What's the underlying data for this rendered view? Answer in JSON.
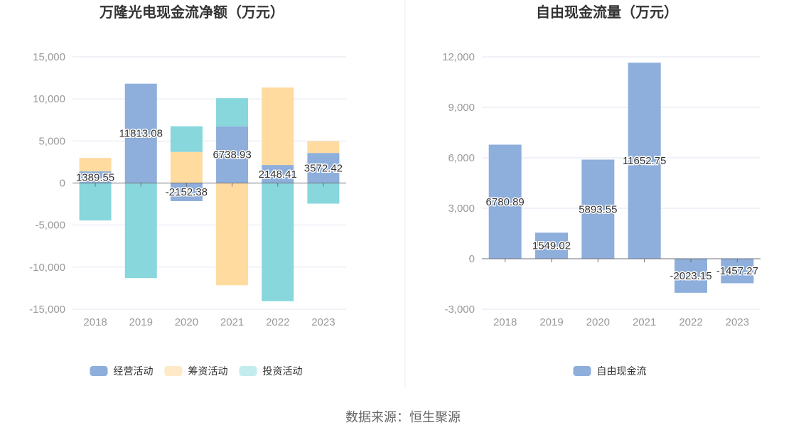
{
  "source": "数据来源：恒生聚源",
  "chart_data": [
    {
      "type": "bar",
      "stacked": true,
      "title": "万隆光电现金流净额（万元）",
      "categories": [
        "2018",
        "2019",
        "2020",
        "2021",
        "2022",
        "2023"
      ],
      "ylim": [
        -15000,
        15000
      ],
      "yticks": [
        15000,
        10000,
        5000,
        0,
        -5000,
        -10000,
        -15000
      ],
      "ytick_labels": [
        "15,000",
        "10,000",
        "5,000",
        "0",
        "-5,000",
        "-10,000",
        "-15,000"
      ],
      "grid": true,
      "legend_position": "bottom",
      "series": [
        {
          "name": "经营活动",
          "color": "#8eaedb",
          "values": [
            1389.55,
            11813.08,
            -2152.38,
            6738.93,
            2148.41,
            3572.42
          ]
        },
        {
          "name": "筹资活动",
          "color": "#ffdb9f",
          "legend_color": "#ffe9c7",
          "values": [
            1600,
            0,
            3700,
            -12150,
            9200,
            1400
          ]
        },
        {
          "name": "投资活动",
          "color": "#87d7dc",
          "legend_color": "#c3ecee",
          "values": [
            -4450,
            -11300,
            3050,
            3350,
            -14050,
            -2450
          ]
        }
      ],
      "data_labels": [
        "1389.55",
        "11813.08",
        "-2152.38",
        "6738.93",
        "2148.41",
        "3572.42"
      ]
    },
    {
      "type": "bar",
      "title": "自由现金流量（万元）",
      "categories": [
        "2018",
        "2019",
        "2020",
        "2021",
        "2022",
        "2023"
      ],
      "ylim": [
        -3000,
        12000
      ],
      "yticks": [
        12000,
        9000,
        6000,
        3000,
        0,
        -3000
      ],
      "ytick_labels": [
        "12,000",
        "9,000",
        "6,000",
        "3,000",
        "0",
        "-3,000"
      ],
      "grid": true,
      "legend_position": "bottom",
      "series": [
        {
          "name": "自由现金流",
          "color": "#8eaedb",
          "values": [
            6780.89,
            1549.02,
            5893.55,
            11652.75,
            -2023.15,
            -1457.27
          ]
        }
      ],
      "data_labels": [
        "6780.89",
        "1549.02",
        "5893.55",
        "11652.75",
        "-2023.15",
        "-1457.27"
      ]
    }
  ]
}
